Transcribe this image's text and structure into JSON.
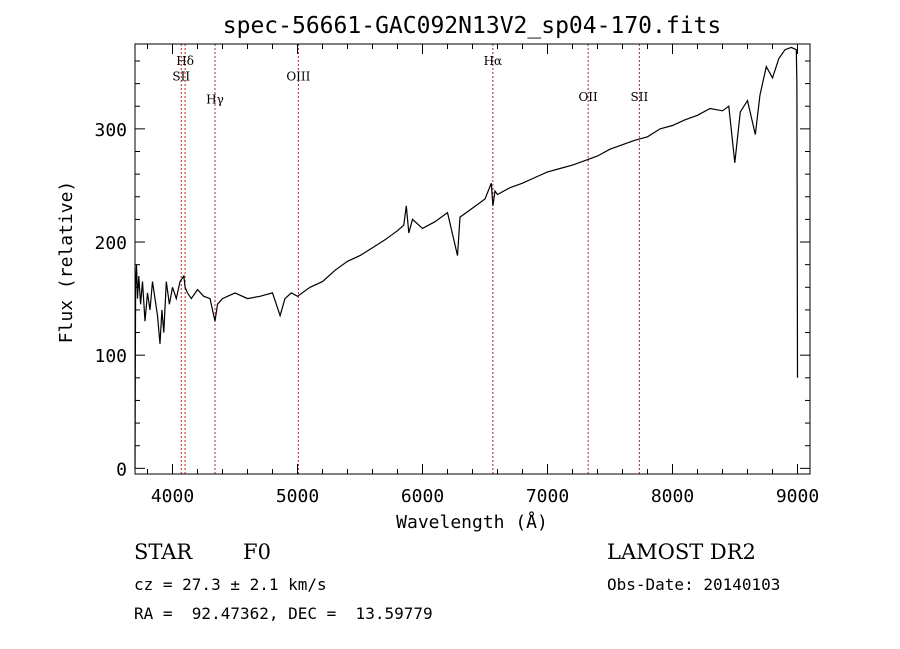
{
  "chart_data": {
    "type": "line",
    "title": "spec-56661-GAC092N13V2_sp04-170.fits",
    "xlabel": "Wavelength (Å)",
    "ylabel": "Flux (relative)",
    "xlim": [
      3700,
      9100
    ],
    "ylim": [
      -5,
      375
    ],
    "xticks": [
      4000,
      5000,
      6000,
      7000,
      8000,
      9000
    ],
    "yticks": [
      0,
      100,
      200,
      300
    ],
    "tick_labels_x": [
      "4000",
      "5000",
      "6000",
      "7000",
      "8000",
      "9000"
    ],
    "tick_labels_y": [
      "0",
      "100",
      "200",
      "300"
    ],
    "grid": false,
    "line_color": "#000000",
    "marker_color": "#b22222",
    "series": [
      {
        "x": [
          3700,
          3705,
          3712,
          3720,
          3730,
          3745,
          3760,
          3780,
          3800,
          3820,
          3840,
          3860,
          3880,
          3900,
          3915,
          3930,
          3950,
          3975,
          4000,
          4030,
          4060,
          4090,
          4101,
          4120,
          4150,
          4200,
          4250,
          4300,
          4340,
          4360,
          4400,
          4500,
          4600,
          4700,
          4800,
          4861,
          4900,
          4950,
          5000,
          5100,
          5200,
          5300,
          5400,
          5500,
          5600,
          5700,
          5800,
          5850,
          5870,
          5890,
          5920,
          6000,
          6100,
          6200,
          6280,
          6300,
          6400,
          6500,
          6550,
          6563,
          6580,
          6600,
          6700,
          6800,
          6900,
          7000,
          7100,
          7200,
          7300,
          7400,
          7500,
          7600,
          7700,
          7800,
          7900,
          8000,
          8100,
          8200,
          8300,
          8400,
          8450,
          8498,
          8542,
          8600,
          8662,
          8700,
          8750,
          8800,
          8850,
          8900,
          8950,
          8990,
          8995,
          9000
        ],
        "y": [
          0,
          160,
          180,
          150,
          170,
          145,
          165,
          130,
          155,
          140,
          165,
          150,
          135,
          110,
          140,
          120,
          165,
          145,
          160,
          150,
          165,
          170,
          160,
          155,
          150,
          158,
          152,
          150,
          130,
          145,
          150,
          155,
          150,
          152,
          155,
          135,
          150,
          155,
          152,
          160,
          165,
          175,
          183,
          188,
          195,
          202,
          210,
          215,
          232,
          208,
          220,
          212,
          218,
          226,
          188,
          222,
          230,
          238,
          252,
          232,
          245,
          242,
          248,
          252,
          257,
          262,
          265,
          268,
          272,
          276,
          282,
          286,
          290,
          293,
          300,
          303,
          308,
          312,
          318,
          316,
          320,
          270,
          315,
          325,
          295,
          330,
          355,
          345,
          362,
          370,
          372,
          370,
          340,
          80
        ]
      }
    ],
    "line_markers": [
      {
        "label": "Hδ",
        "x": 4101,
        "label_y": 361
      },
      {
        "label": "SII",
        "x": 4070,
        "label_y": 347
      },
      {
        "label": "Hγ",
        "x": 4340,
        "label_y": 327
      },
      {
        "label": "OIII",
        "x": 5007,
        "label_y": 347
      },
      {
        "label": "Hα",
        "x": 6563,
        "label_y": 361
      },
      {
        "label": "OII",
        "x": 7325,
        "label_y": 329
      },
      {
        "label": "SII",
        "x": 7735,
        "label_y": 329
      }
    ]
  },
  "info": {
    "object_type": "STAR",
    "subclass": "F0",
    "survey": "LAMOST DR2",
    "redshift": "cz = 27.3 ± 2.1 km/s",
    "obs_date": "Obs-Date: 20140103",
    "coords": "RA =  92.47362, DEC =  13.59779"
  }
}
